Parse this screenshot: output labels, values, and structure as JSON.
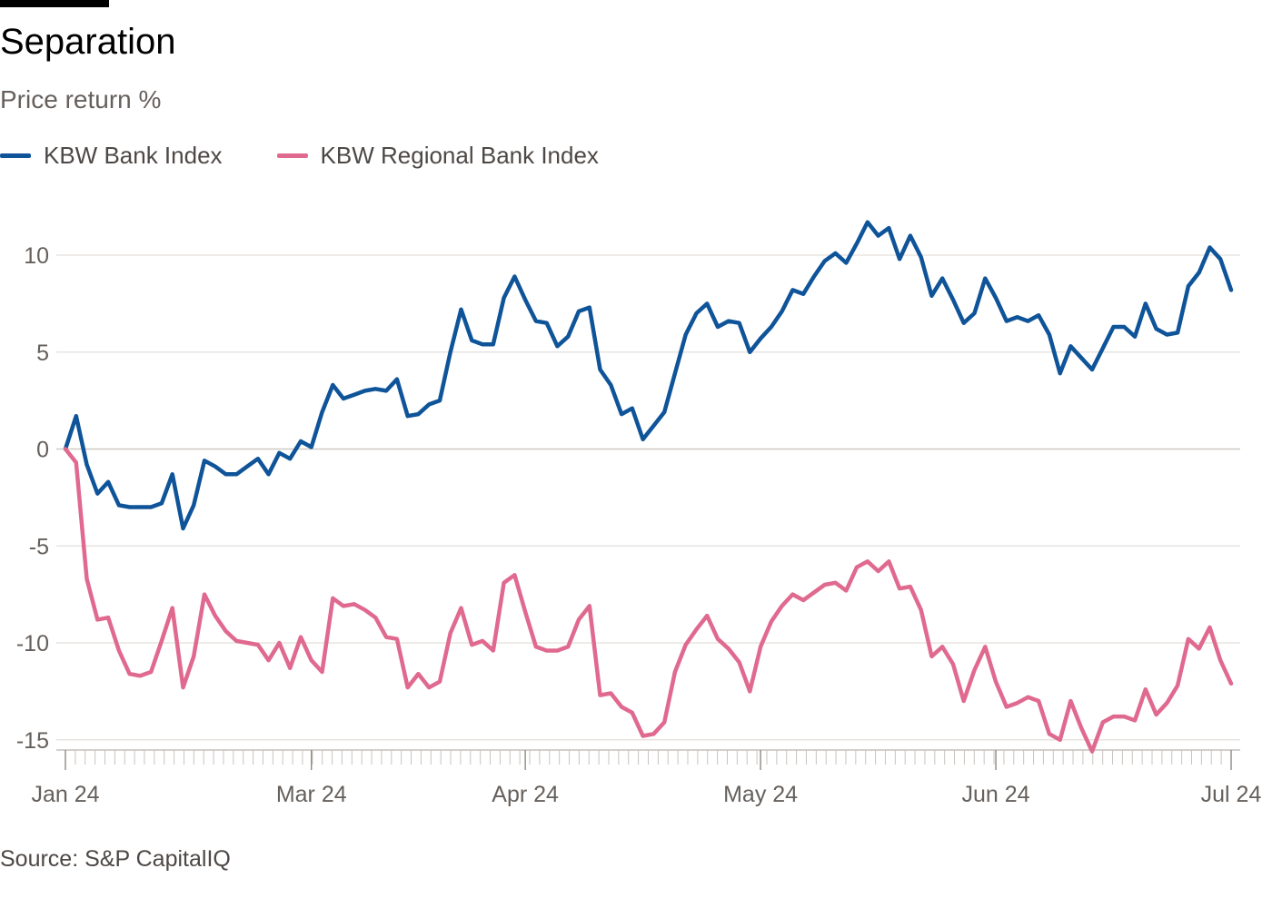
{
  "chart_data": {
    "type": "line",
    "title": "Separation",
    "subtitle": "Price return %",
    "source": "Source: S&P CapitalIQ",
    "xlabel": "",
    "ylabel": "Price return %",
    "ylim": [
      -15,
      12
    ],
    "yticks": [
      10,
      5,
      0,
      -5,
      -10,
      -15
    ],
    "xtick_labels": [
      "Jan 24",
      "Mar 24",
      "Apr 24",
      "May 24",
      "Jun 24",
      "Jul 24"
    ],
    "xtick_index": [
      0,
      23,
      43,
      65,
      87,
      109
    ],
    "series": [
      {
        "name": "KBW Bank Index",
        "color": "#0f5499",
        "values": [
          0,
          1.7,
          -0.8,
          -2.3,
          -1.7,
          -2.9,
          -3.0,
          -3.0,
          -3.0,
          -2.8,
          -1.3,
          -4.1,
          -2.9,
          -0.6,
          -0.9,
          -1.3,
          -1.3,
          -0.9,
          -0.5,
          -1.3,
          -0.2,
          -0.5,
          0.4,
          0.1,
          1.9,
          3.3,
          2.6,
          2.8,
          3.0,
          3.1,
          3.0,
          3.6,
          1.7,
          1.8,
          2.3,
          2.5,
          5.0,
          7.2,
          5.6,
          5.4,
          5.4,
          7.8,
          8.9,
          7.7,
          6.6,
          6.5,
          5.3,
          5.8,
          7.1,
          7.3,
          4.1,
          3.3,
          1.8,
          2.1,
          0.5,
          1.2,
          1.9,
          3.9,
          5.9,
          7.0,
          7.5,
          6.3,
          6.6,
          6.5,
          5.0,
          5.7,
          6.3,
          7.1,
          8.2,
          8.0,
          8.9,
          9.7,
          10.1,
          9.6,
          10.6,
          11.7,
          11.0,
          11.4,
          9.8,
          11.0,
          9.9,
          7.9,
          8.8,
          7.7,
          6.5,
          7.0,
          8.8,
          7.8,
          6.6,
          6.8,
          6.6,
          6.9,
          5.9,
          3.9,
          5.3,
          4.7,
          4.1,
          5.2,
          6.3,
          6.3,
          5.8,
          7.5,
          6.2,
          5.9,
          6.0,
          8.4,
          9.1,
          10.4,
          9.8,
          8.2
        ]
      },
      {
        "name": "KBW Regional Bank Index",
        "color": "#e0698f",
        "values": [
          0,
          -0.7,
          -6.7,
          -8.8,
          -8.7,
          -10.4,
          -11.6,
          -11.7,
          -11.5,
          -9.9,
          -8.2,
          -12.3,
          -10.7,
          -7.5,
          -8.6,
          -9.4,
          -9.9,
          -10.0,
          -10.1,
          -10.9,
          -10.0,
          -11.3,
          -9.7,
          -10.9,
          -11.5,
          -7.7,
          -8.1,
          -8.0,
          -8.3,
          -8.7,
          -9.7,
          -9.8,
          -12.3,
          -11.6,
          -12.3,
          -12.0,
          -9.5,
          -8.2,
          -10.1,
          -9.9,
          -10.4,
          -6.9,
          -6.5,
          -8.4,
          -10.2,
          -10.4,
          -10.4,
          -10.2,
          -8.8,
          -8.1,
          -12.7,
          -12.6,
          -13.3,
          -13.6,
          -14.8,
          -14.7,
          -14.1,
          -11.5,
          -10.1,
          -9.3,
          -8.6,
          -9.8,
          -10.3,
          -11.0,
          -12.5,
          -10.2,
          -8.9,
          -8.1,
          -7.5,
          -7.8,
          -7.4,
          -7.0,
          -6.9,
          -7.3,
          -6.1,
          -5.8,
          -6.3,
          -5.8,
          -7.2,
          -7.1,
          -8.3,
          -10.7,
          -10.2,
          -11.1,
          -13.0,
          -11.4,
          -10.2,
          -12.0,
          -13.3,
          -13.1,
          -12.8,
          -13.0,
          -14.7,
          -15.0,
          -13.0,
          -14.4,
          -15.6,
          -14.1,
          -13.8,
          -13.8,
          -14.0,
          -12.4,
          -13.7,
          -13.1,
          -12.2,
          -9.8,
          -10.3,
          -9.2,
          -10.9,
          -12.1
        ]
      }
    ]
  }
}
